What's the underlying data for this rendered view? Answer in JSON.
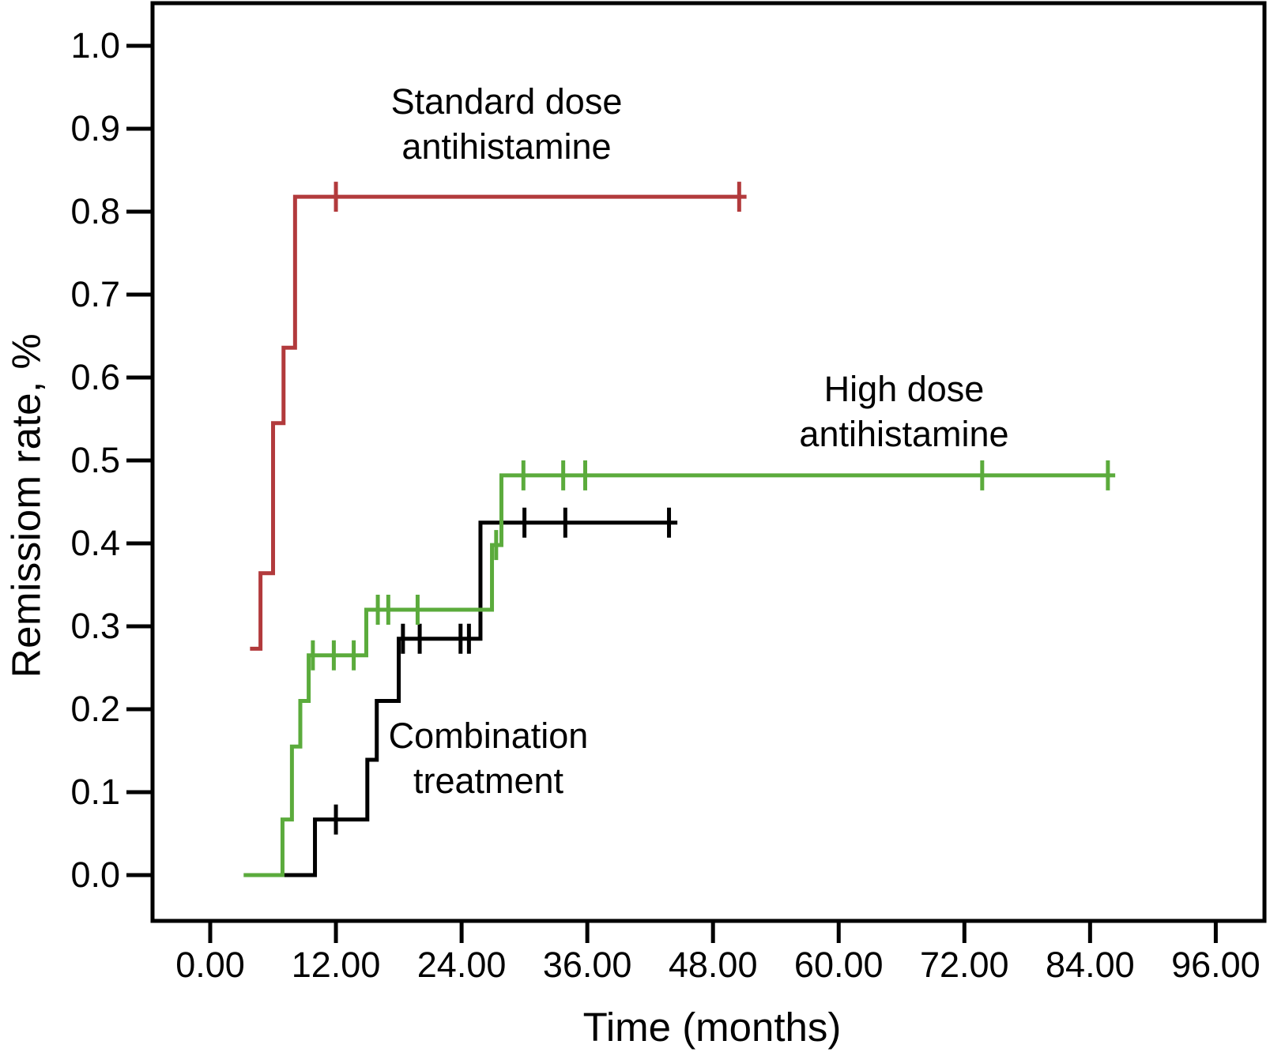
{
  "chart_data": {
    "type": "line",
    "subtype": "kaplan-meier-step",
    "title": "",
    "xlabel": "Time (months)",
    "ylabel": "Remissiom rate, %",
    "xlim_months": [
      -5.5,
      100.7
    ],
    "ylim": [
      -0.055,
      1.05
    ],
    "grid": false,
    "legend_position": "inline-annotations",
    "x_ticks": [
      {
        "v": 0,
        "label": "0.00"
      },
      {
        "v": 12,
        "label": "12.00"
      },
      {
        "v": 24,
        "label": "24.00"
      },
      {
        "v": 36,
        "label": "36.00"
      },
      {
        "v": 48,
        "label": "48.00"
      },
      {
        "v": 60,
        "label": "60.00"
      },
      {
        "v": 72,
        "label": "72.00"
      },
      {
        "v": 84,
        "label": "84.00"
      },
      {
        "v": 96,
        "label": "96.00"
      }
    ],
    "y_ticks": [
      {
        "v": 1.0,
        "label": "1.0"
      },
      {
        "v": 0.9,
        "label": "0.9"
      },
      {
        "v": 0.8,
        "label": "0.8"
      },
      {
        "v": 0.7,
        "label": "0.7"
      },
      {
        "v": 0.6,
        "label": "0.6"
      },
      {
        "v": 0.5,
        "label": "0.5"
      },
      {
        "v": 0.4,
        "label": "0.4"
      },
      {
        "v": 0.3,
        "label": "0.3"
      },
      {
        "v": 0.2,
        "label": "0.2"
      },
      {
        "v": 0.1,
        "label": "0.1"
      },
      {
        "v": 0.0,
        "label": "0.0"
      }
    ],
    "series": [
      {
        "name": "Standard dose antihistamine",
        "color": "#b23a3c",
        "label_lines": [
          "Standard dose",
          "antihistamine"
        ],
        "steps": [
          [
            3.8,
            0.273
          ],
          [
            4.8,
            0.364
          ],
          [
            6.0,
            0.545
          ],
          [
            7.0,
            0.636
          ],
          [
            8.1,
            0.818
          ],
          [
            51.2,
            0.818
          ]
        ],
        "censors": [
          [
            12.0,
            0.818
          ],
          [
            50.5,
            0.818
          ]
        ]
      },
      {
        "name": "Combination treatment",
        "color": "#000000",
        "label_lines": [
          "Combination",
          "treatment"
        ],
        "steps": [
          [
            3.2,
            0.0
          ],
          [
            10.0,
            0.067
          ],
          [
            15.0,
            0.139
          ],
          [
            15.9,
            0.21
          ],
          [
            18.0,
            0.285
          ],
          [
            25.8,
            0.425
          ],
          [
            44.6,
            0.425
          ]
        ],
        "censors": [
          [
            12.0,
            0.067
          ],
          [
            18.4,
            0.285
          ],
          [
            20.0,
            0.285
          ],
          [
            23.9,
            0.285
          ],
          [
            24.7,
            0.285
          ],
          [
            30.0,
            0.425
          ],
          [
            33.9,
            0.425
          ],
          [
            43.8,
            0.425
          ]
        ]
      },
      {
        "name": "High dose antihistamine",
        "color": "#5bab3c",
        "label_lines": [
          "High dose",
          "antihistamine"
        ],
        "steps": [
          [
            3.2,
            0.0
          ],
          [
            6.9,
            0.067
          ],
          [
            7.8,
            0.155
          ],
          [
            8.6,
            0.21
          ],
          [
            9.4,
            0.265
          ],
          [
            14.9,
            0.32
          ],
          [
            26.9,
            0.398
          ],
          [
            27.8,
            0.482
          ],
          [
            86.4,
            0.482
          ]
        ],
        "censors": [
          [
            9.8,
            0.265
          ],
          [
            11.8,
            0.265
          ],
          [
            13.7,
            0.265
          ],
          [
            16.0,
            0.32
          ],
          [
            17.0,
            0.32
          ],
          [
            19.8,
            0.32
          ],
          [
            27.3,
            0.398
          ],
          [
            29.9,
            0.482
          ],
          [
            33.7,
            0.482
          ],
          [
            35.8,
            0.482
          ],
          [
            73.7,
            0.482
          ],
          [
            85.7,
            0.482
          ]
        ]
      }
    ]
  }
}
